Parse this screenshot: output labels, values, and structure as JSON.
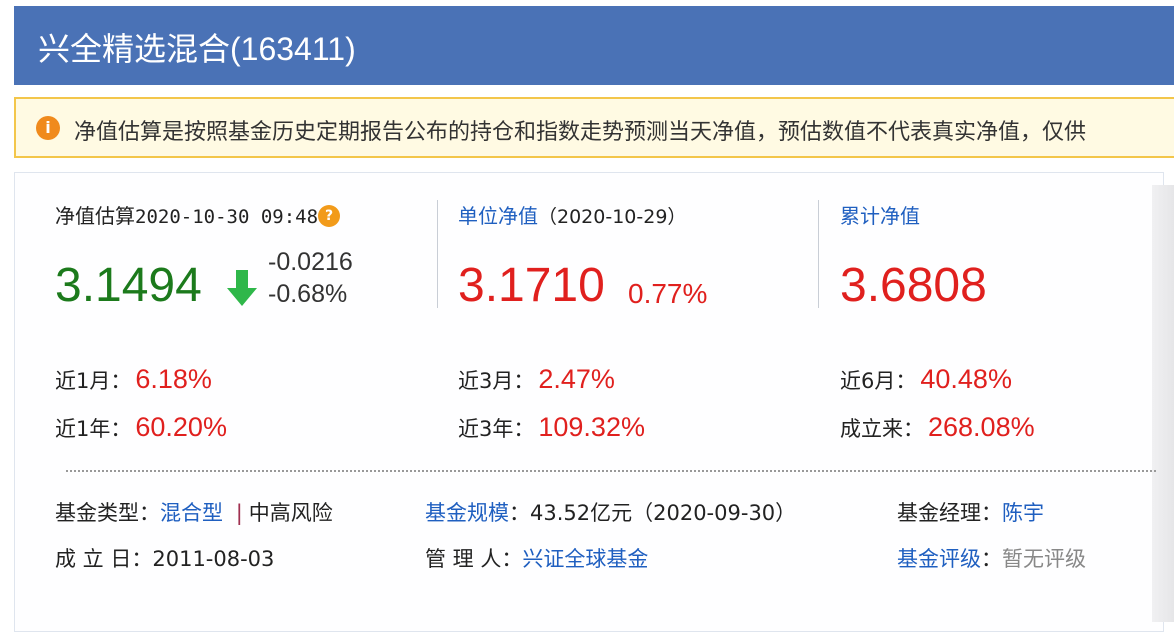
{
  "header": {
    "title": "兴全精选混合(163411)"
  },
  "notice": {
    "icon": "info-icon",
    "text": "净值估算是按照基金历史定期报告公布的持仓和指数走势预测当天净值，预估数值不代表真实净值，仅供"
  },
  "estimate": {
    "label": "净值估算",
    "datetime": "2020-10-30 09:48",
    "help_icon": "question-icon",
    "value": "3.1494",
    "arrow_icon": "arrow-down-icon",
    "change": "-0.0216",
    "change_pct": "-0.68%"
  },
  "unit_nav": {
    "label": "单位净值",
    "date": "（2020-10-29）",
    "value": "3.1710",
    "change_pct": "0.77%"
  },
  "cum_nav": {
    "label": "累计净值",
    "value": "3.6808"
  },
  "returns": [
    {
      "label": "近1月：",
      "value": "6.18%"
    },
    {
      "label": "近3月：",
      "value": "2.47%"
    },
    {
      "label": "近6月：",
      "value": "40.48%"
    },
    {
      "label": "近1年：",
      "value": "60.20%"
    },
    {
      "label": "近3年：",
      "value": "109.32%"
    },
    {
      "label": "成立来：",
      "value": "268.08%"
    }
  ],
  "info": {
    "type_label": "基金类型：",
    "type_value": "混合型",
    "sep": "|",
    "risk": "中高风险",
    "scale_label": "基金规模",
    "scale_colon": "：",
    "scale_value": "43.52亿元（2020-09-30）",
    "manager_label": "基金经理：",
    "manager_value": "陈宇",
    "inception_label": "成 立 日：",
    "inception_value": "2011-08-03",
    "company_label": "管 理 人：",
    "company_value": "兴证全球基金",
    "rating_label": "基金评级",
    "rating_colon": "：",
    "rating_value": "暂无评级"
  },
  "colors": {
    "header": "#4a72b6",
    "up": "#e0201e",
    "down": "#1c7a1c",
    "link": "#1f5fc0"
  }
}
